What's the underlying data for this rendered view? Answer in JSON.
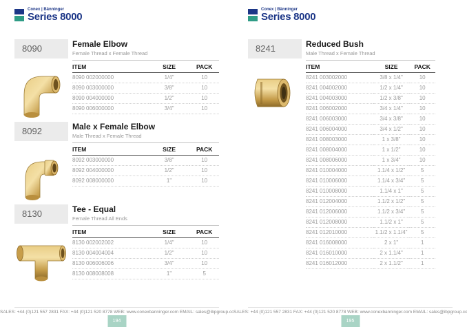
{
  "brand": {
    "logo_small": "Conex | Bänninger",
    "series": "Series 8000"
  },
  "colors": {
    "blue": "#1c3687",
    "teal": "#2f9c86",
    "pagenum_bg": "#a9d4c5",
    "orange_tab": "#e4a44f",
    "beige_tab": "#e7e2da",
    "brass": "#d4a855"
  },
  "footer": {
    "text": "SALES: +44 (0)121 557 2831  FAX: +44 (0)121 520 8778  WEB: www.conexbanninger.com  EMAIL: sales@ibpgroup.com"
  },
  "pages": [
    {
      "page_number": "194",
      "sections": [
        {
          "code": "8090",
          "title": "Female Elbow",
          "subtitle": "Female Thread x Female Thread",
          "image": "female-elbow-photo",
          "columns": [
            "ITEM",
            "SIZE",
            "PACK"
          ],
          "rows": [
            [
              "8090 002000000",
              "1/4\"",
              "10"
            ],
            [
              "8090 003000000",
              "3/8\"",
              "10"
            ],
            [
              "8090 004000000",
              "1/2\"",
              "10"
            ],
            [
              "8090 006000000",
              "3/4\"",
              "10"
            ]
          ]
        },
        {
          "code": "8092",
          "title": "Male x Female Elbow",
          "subtitle": "Male Thread x Female Thread",
          "image": "male-female-elbow-photo",
          "columns": [
            "ITEM",
            "SIZE",
            "PACK"
          ],
          "rows": [
            [
              "8092 003000000",
              "3/8\"",
              "10"
            ],
            [
              "8092 004000000",
              "1/2\"",
              "10"
            ],
            [
              "8092 008000000",
              "1\"",
              "10"
            ]
          ]
        },
        {
          "code": "8130",
          "title": "Tee - Equal",
          "subtitle": "Female Thread All Ends",
          "image": "tee-photo",
          "columns": [
            "ITEM",
            "SIZE",
            "PACK"
          ],
          "rows": [
            [
              "8130 002002002",
              "1/4\"",
              "10"
            ],
            [
              "8130 004004004",
              "1/2\"",
              "10"
            ],
            [
              "8130 006006006",
              "3/4\"",
              "10"
            ],
            [
              "8130 008008008",
              "1\"",
              "5"
            ]
          ]
        }
      ]
    },
    {
      "page_number": "195",
      "sections": [
        {
          "code": "8241",
          "title": "Reduced Bush",
          "subtitle": "Male Thread x Female Thread",
          "image": "reduced-bush-photo",
          "columns": [
            "ITEM",
            "SIZE",
            "PACK"
          ],
          "rows": [
            [
              "8241 003002000",
              "3/8 x 1/4\"",
              "10"
            ],
            [
              "8241 004002000",
              "1/2 x 1/4\"",
              "10"
            ],
            [
              "8241 004003000",
              "1/2 x 3/8\"",
              "10"
            ],
            [
              "8241 006002000",
              "3/4 x 1/4\"",
              "10"
            ],
            [
              "8241 006003000",
              "3/4 x 3/8\"",
              "10"
            ],
            [
              "8241 006004000",
              "3/4 x 1/2\"",
              "10"
            ],
            [
              "8241 008003000",
              "1 x 3/8\"",
              "10"
            ],
            [
              "8241 008004000",
              "1 x 1/2\"",
              "10"
            ],
            [
              "8241 008006000",
              "1 x 3/4\"",
              "10"
            ],
            [
              "8241 010004000",
              "1.1/4 x 1/2\"",
              "5"
            ],
            [
              "8241 010006000",
              "1.1/4 x 3/4\"",
              "5"
            ],
            [
              "8241 010008000",
              "1.1/4 x 1\"",
              "5"
            ],
            [
              "8241 012004000",
              "1.1/2 x 1/2\"",
              "5"
            ],
            [
              "8241 012006000",
              "1.1/2 x 3/4\"",
              "5"
            ],
            [
              "8241 012008000",
              "1.1/2 x 1\"",
              "5"
            ],
            [
              "8241 012010000",
              "1.1/2 x 1.1/4\"",
              "5"
            ],
            [
              "8241 016008000",
              "2 x 1\"",
              "1"
            ],
            [
              "8241 016010000",
              "2 x 1.1/4\"",
              "1"
            ],
            [
              "8241 016012000",
              "2 x 1.1/2\"",
              "1"
            ]
          ]
        }
      ]
    }
  ]
}
